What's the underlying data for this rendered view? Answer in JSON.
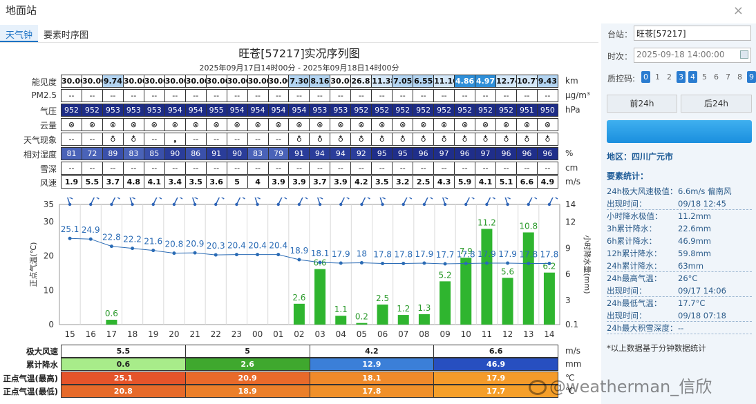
{
  "window": {
    "title": "地面站",
    "close": "×"
  },
  "tabs": [
    "天气钟",
    "要素时序图"
  ],
  "chart_title": "旺苍[57217]实况序列图",
  "chart_subtitle": "2025年09月17日14时00分 - 2025年09月18日14时00分",
  "rows": {
    "vis": {
      "label": "能见度",
      "unit": "km",
      "values": [
        "30.00",
        "30.00",
        "9.74",
        "30.00",
        "30.00",
        "30.00",
        "30.00",
        "30.00",
        "30.00",
        "30.00",
        "30.00",
        "7.30",
        "8.16",
        "30.00",
        "26.81",
        "11.38",
        "7.05",
        "6.55",
        "11.10",
        "4.86",
        "4.97",
        "12.74",
        "10.77",
        "9.43"
      ]
    },
    "pm25": {
      "label": "PM2.5",
      "unit": "μg/m³",
      "values": [
        "--",
        "--",
        "--",
        "--",
        "--",
        "--",
        "--",
        "--",
        "--",
        "--",
        "--",
        "--",
        "--",
        "--",
        "--",
        "--",
        "--",
        "--",
        "--",
        "--",
        "--",
        "--",
        "--",
        "--"
      ]
    },
    "pres": {
      "label": "气压",
      "unit": "hPa",
      "values": [
        "952",
        "952",
        "953",
        "953",
        "953",
        "954",
        "954",
        "955",
        "954",
        "954",
        "954",
        "954",
        "953",
        "953",
        "952",
        "952",
        "952",
        "952",
        "952",
        "952",
        "952",
        "952",
        "951",
        "950"
      ]
    },
    "cloud": {
      "label": "云量",
      "unit": "",
      "values": [
        "⊗",
        "⊗",
        "⊗",
        "⊗",
        "⊗",
        "⊗",
        "⊗",
        "⊗",
        "⊗",
        "⊗",
        "⊗",
        "⊗",
        "⊗",
        "⊗",
        "⊗",
        "⊗",
        "⊗",
        "⊗",
        "⊗",
        "⊗",
        "⊗",
        "⊗",
        "⊗",
        "⊗"
      ]
    },
    "wx": {
      "label": "天气现象",
      "unit": "",
      "values": [
        "--",
        "--",
        "♁",
        "♁",
        "--",
        "❟",
        "--",
        "--",
        "--",
        "--",
        "--",
        "♁",
        "♁",
        "♁",
        "♁",
        "♁",
        "♁",
        "♁",
        "♁",
        "♁",
        "♁",
        "♁",
        "♁",
        "♁"
      ]
    },
    "rh": {
      "label": "相对湿度",
      "unit": "%",
      "values": [
        "81",
        "72",
        "89",
        "83",
        "85",
        "90",
        "86",
        "91",
        "90",
        "83",
        "79",
        "91",
        "94",
        "94",
        "92",
        "95",
        "95",
        "96",
        "97",
        "96",
        "97",
        "96",
        "96",
        "96"
      ]
    },
    "snow": {
      "label": "雪深",
      "unit": "cm",
      "values": [
        "--",
        "--",
        "--",
        "--",
        "--",
        "--",
        "--",
        "--",
        "--",
        "--",
        "--",
        "--",
        "--",
        "--",
        "--",
        "--",
        "--",
        "--",
        "--",
        "--",
        "--",
        "--",
        "--",
        "--"
      ]
    },
    "wind": {
      "label": "风速",
      "unit": "m/s",
      "values": [
        "1.9",
        "5.5",
        "3.7",
        "4.8",
        "4.1",
        "3.4",
        "3.5",
        "3.6",
        "5",
        "4",
        "3.9",
        "3.9",
        "3.7",
        "3.9",
        "4.2",
        "3.5",
        "3.2",
        "2.5",
        "4.3",
        "5.9",
        "4.1",
        "5.1",
        "6.6",
        "4.9"
      ]
    }
  },
  "chart_data": {
    "type": "bar+line",
    "categories": [
      "15",
      "16",
      "17",
      "18",
      "19",
      "20",
      "21",
      "22",
      "23",
      "00",
      "01",
      "02",
      "03",
      "04",
      "05",
      "06",
      "07",
      "08",
      "09",
      "10",
      "11",
      "12",
      "13",
      "14"
    ],
    "temperature": [
      25.1,
      24.9,
      22.8,
      22.2,
      21.6,
      20.8,
      20.9,
      20.3,
      20.4,
      20.4,
      20.4,
      18.9,
      18.1,
      17.9,
      18,
      17.8,
      17.8,
      17.9,
      17.7,
      17.8,
      17.9,
      17.9,
      17.8,
      17.8
    ],
    "precip": [
      0,
      0,
      0.6,
      0,
      0,
      0,
      0,
      0,
      0,
      0,
      0,
      2.6,
      6.6,
      1.1,
      0.2,
      2.5,
      1.2,
      1.3,
      5.2,
      7.9,
      11.2,
      5.6,
      10.8,
      6.2
    ],
    "y_left": {
      "label": "正点气温(℃)",
      "ticks": [
        0,
        10,
        20,
        30,
        35
      ]
    },
    "y_right": {
      "label": "小时降水量(mm)",
      "ticks": [
        "0.1",
        "3",
        "6",
        "9",
        "12",
        "14"
      ]
    },
    "colors": {
      "temp": "#2a6bb5",
      "bar": "#2fb52f",
      "barlabel": "#2b9a2b",
      "wind": "#2b62b6"
    }
  },
  "summary": {
    "windmax": {
      "label": "极大风速",
      "unit": "m/s",
      "values": [
        "5.5",
        "5",
        "4.2",
        "6.6"
      ]
    },
    "rainsum": {
      "label": "累计降水",
      "unit": "mm",
      "values": [
        "0.6",
        "2.6",
        "12.9",
        "46.9"
      ]
    },
    "tmax": {
      "label": "正点气温(最高)",
      "unit": "℃",
      "values": [
        "25.1",
        "20.9",
        "18.1",
        "17.9"
      ]
    },
    "tmin": {
      "label": "正点气温(最低)",
      "unit": "℃",
      "values": [
        "20.8",
        "18.9",
        "17.8",
        "17.7"
      ]
    }
  },
  "panel": {
    "station_label": "台站：",
    "station_value": "旺苍[57217]",
    "time_label": "时次：",
    "time_value": "2025-09-18 14:00:00",
    "qc_label": "质控码:",
    "qc": [
      "0",
      "1",
      "2",
      "3",
      "4",
      "5",
      "6",
      "7",
      "8",
      "9"
    ],
    "prev_btn": "前24h",
    "next_btn": "后24h",
    "area": "地区：四川广元市",
    "stat_header": "要素统计：",
    "stats": [
      {
        "k": "24h极大风速极值：",
        "v": "6.6m/s 偏南风",
        "dash": false
      },
      {
        "k": "出现时间：",
        "v": "09/18 12:45",
        "dash": true
      },
      {
        "k": "小时降水极值：",
        "v": "11.2mm",
        "dash": false
      },
      {
        "k": "3h累计降水：",
        "v": "22.6mm",
        "dash": false
      },
      {
        "k": "6h累计降水：",
        "v": "46.9mm",
        "dash": false
      },
      {
        "k": "12h累计降水：",
        "v": "59.8mm",
        "dash": false
      },
      {
        "k": "24h累计降水：",
        "v": "63mm",
        "dash": true
      },
      {
        "k": "24h最高气温：",
        "v": "26°C",
        "dash": false
      },
      {
        "k": "出现时间：",
        "v": "09/17 14:06",
        "dash": true
      },
      {
        "k": "24h最低气温：",
        "v": "17.7°C",
        "dash": false
      },
      {
        "k": "出现时间：",
        "v": "09/18 07:18",
        "dash": true
      },
      {
        "k": "24h最大积雪深度：",
        "v": "--",
        "dash": true
      }
    ],
    "note": "*以上数据基于分钟数据统计"
  },
  "watermark": "@weatherman_信欣"
}
